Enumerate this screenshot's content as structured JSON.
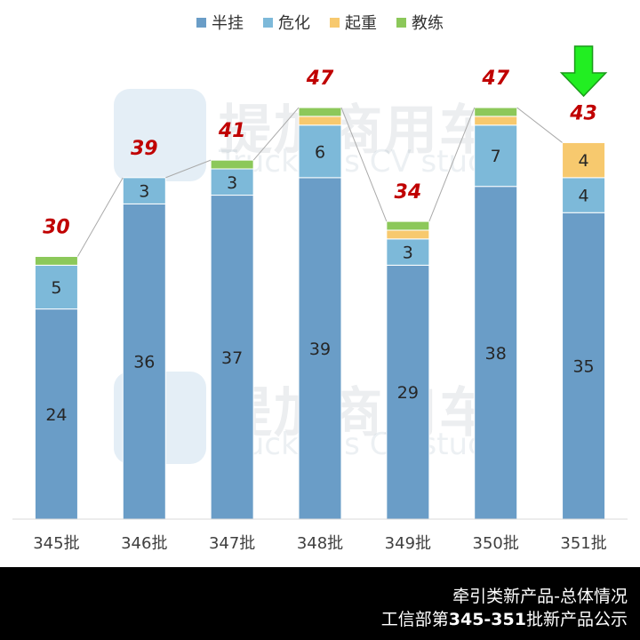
{
  "legend": [
    {
      "name": "半挂",
      "color": "#6a9dc7"
    },
    {
      "name": "危化",
      "color": "#7db9d9"
    },
    {
      "name": "起重",
      "color": "#f7c96e"
    },
    {
      "name": "教练",
      "color": "#8cc85a"
    }
  ],
  "watermark": {
    "cn": "提加商用车",
    "en": "TruckPlus CV studio"
  },
  "footer": {
    "line1": "牵引类新产品-总体情况",
    "line2_prefix": "工信部第",
    "line2_bold": "345-351",
    "line2_suffix": "批新产品公示"
  },
  "chart_data": {
    "type": "bar",
    "stacked": true,
    "categories": [
      "345批",
      "346批",
      "347批",
      "348批",
      "349批",
      "350批",
      "351批"
    ],
    "series": [
      {
        "name": "半挂",
        "color": "#6a9dc7",
        "values": [
          24,
          36,
          37,
          39,
          29,
          38,
          35
        ],
        "labels": [
          "24",
          "36",
          "37",
          "39",
          "29",
          "38",
          "35"
        ]
      },
      {
        "name": "危化",
        "color": "#7db9d9",
        "values": [
          5,
          3,
          3,
          6,
          3,
          7,
          4
        ],
        "labels": [
          "5",
          "3",
          "3",
          "6",
          "3",
          "7",
          "4"
        ]
      },
      {
        "name": "起重",
        "color": "#f7c96e",
        "values": [
          0,
          0,
          0,
          1,
          1,
          1,
          4
        ],
        "labels": [
          "",
          "",
          "",
          "",
          "",
          "",
          "4"
        ]
      },
      {
        "name": "教练",
        "color": "#8cc85a",
        "values": [
          1,
          0,
          1,
          1,
          1,
          1,
          0
        ],
        "labels": [
          "",
          "",
          "",
          "",
          "",
          "",
          ""
        ]
      }
    ],
    "totals": [
      30,
      39,
      41,
      47,
      34,
      47,
      43
    ],
    "total_labels": [
      "30",
      "39",
      "41",
      "47",
      "34",
      "47",
      "43"
    ],
    "ylim": [
      0,
      48
    ],
    "grid": false,
    "legend_position": "top-center",
    "annotation": {
      "type": "green-down-arrow",
      "category": "351批"
    },
    "colors": {
      "total_label": "#c00000",
      "trend_line": "#aaaaaa",
      "axis": "#d9d9d9",
      "arrow": "#22ee22"
    }
  }
}
